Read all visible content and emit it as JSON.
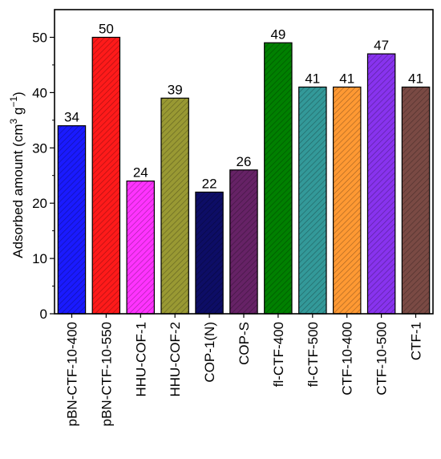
{
  "chart_data": {
    "type": "bar",
    "categories": [
      "pBN-CTF-10-400",
      "pBN-CTF-10-550",
      "HHU-COF-1",
      "HHU-COF-2",
      "COP-1(N)",
      "COP-S",
      "fl-CTF-400",
      "fl-CTF-500",
      "CTF-10-400",
      "CTF-10-500",
      "CTF-1"
    ],
    "values": [
      34,
      50,
      24,
      39,
      22,
      26,
      49,
      41,
      41,
      47,
      41
    ],
    "value_labels": [
      "34",
      "50",
      "24",
      "39",
      "22",
      "26",
      "49",
      "41",
      "41",
      "47",
      "41"
    ],
    "colors": [
      "#1a1aff",
      "#ff1a1a",
      "#ff33ff",
      "#999933",
      "#0d0d66",
      "#662266",
      "#008000",
      "#339999",
      "#ff9933",
      "#8833ee",
      "#7a4a44"
    ],
    "ylabel": {
      "main": "Adsorbed amount (cm",
      "sup1": "3",
      "mid": " g",
      "sup2": "−1",
      "end": ")"
    },
    "xlabel": "",
    "ylim": [
      0,
      55
    ],
    "yticks": [
      0,
      10,
      20,
      30,
      40,
      50
    ],
    "ytick_labels": [
      "0",
      "10",
      "20",
      "30",
      "40",
      "50"
    ],
    "pattern": "diagonal-hatch",
    "grid": false
  }
}
